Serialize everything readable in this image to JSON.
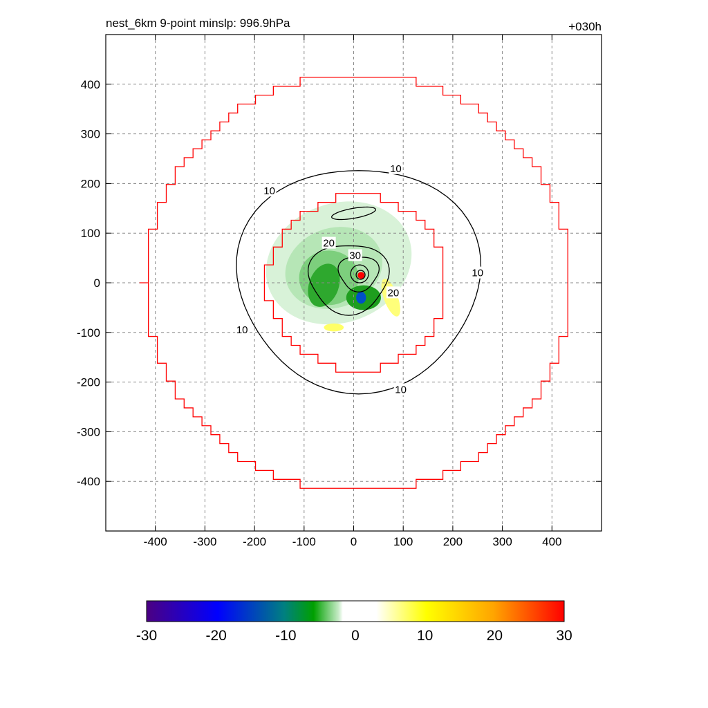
{
  "title_left": "nest_6km  9-point minslp: 996.9hPa",
  "title_right": "+030h",
  "chart_data": {
    "type": "heatmap",
    "title": "nest_6km  9-point minslp: 996.9hPa",
    "time_label": "+030h",
    "xlabel": "",
    "ylabel": "",
    "xlim": [
      -500,
      500
    ],
    "ylim": [
      -500,
      500
    ],
    "xticks": [
      -400,
      -300,
      -200,
      -100,
      0,
      100,
      200,
      300,
      400
    ],
    "yticks": [
      -400,
      -300,
      -200,
      -100,
      0,
      100,
      200,
      300,
      400
    ],
    "grid": true,
    "colorbar": {
      "ticks": [
        -30,
        -20,
        -10,
        0,
        10,
        20,
        30
      ],
      "range": [
        -30,
        30
      ],
      "white_band": [
        -3,
        3
      ],
      "colors": [
        "#4b0082",
        "#0000ff",
        "#008080",
        "#00a000",
        "#ffffff",
        "#ffff00",
        "#ffa500",
        "#ff0000"
      ]
    },
    "contour_levels": [
      10,
      20,
      30
    ],
    "contour_labels": [
      {
        "text": "10",
        "x": 85,
        "y": 230
      },
      {
        "text": "10",
        "x": -170,
        "y": 185
      },
      {
        "text": "10",
        "x": 250,
        "y": 20
      },
      {
        "text": "10",
        "x": -225,
        "y": -95
      },
      {
        "text": "10",
        "x": 95,
        "y": -215
      },
      {
        "text": "20",
        "x": -50,
        "y": 80
      },
      {
        "text": "20",
        "x": 80,
        "y": -20
      },
      {
        "text": "30",
        "x": 3,
        "y": 55
      }
    ],
    "inner_ring_radius_km": 185,
    "outer_ring_radius_km": 430
  }
}
